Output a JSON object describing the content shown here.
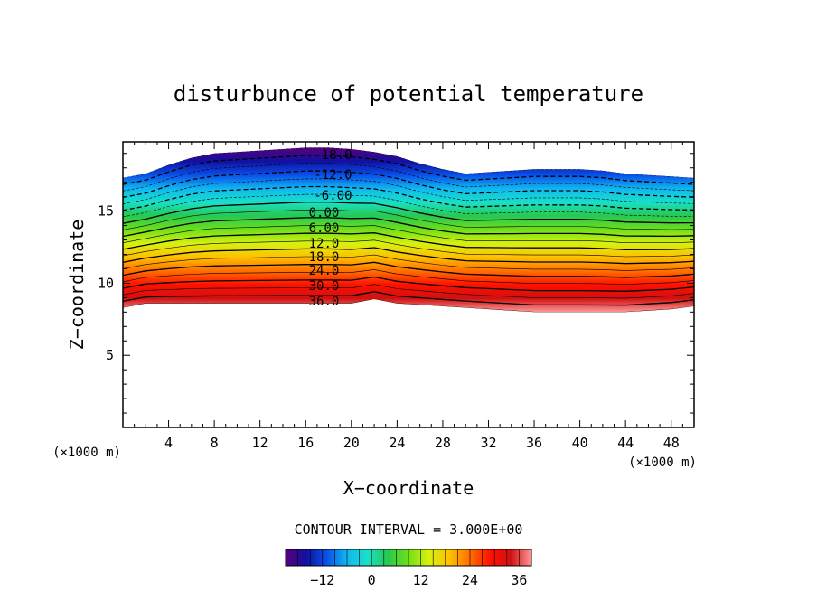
{
  "chart_data": {
    "type": "contour",
    "title": "disturbunce of potential temperature",
    "xlabel": "X−coordinate",
    "ylabel": "Z−coordinate",
    "x_unit_left": "(×1000 m)",
    "x_unit_right": "(×1000 m)",
    "xlim": [
      0,
      50
    ],
    "ylim": [
      0,
      19.8
    ],
    "x_ticks": [
      4,
      8,
      12,
      16,
      20,
      24,
      28,
      32,
      36,
      40,
      44,
      48
    ],
    "y_ticks": [
      5,
      10,
      15
    ],
    "contour_interval_text": "CONTOUR INTERVAL = 3.000E+00",
    "contour_interval": 3.0,
    "value_range": [
      -21,
      39
    ],
    "contour_labels": [
      "-18.0",
      "-12.0",
      "-6.00",
      "0.00",
      "6.00",
      "12.0",
      "18.0",
      "24.0",
      "30.0",
      "36.0"
    ],
    "colorbar": {
      "ticks": [
        -12,
        0,
        12,
        24,
        36
      ],
      "tick_labels": [
        "−12",
        "0",
        "12",
        "24",
        "36"
      ],
      "range": [
        -21,
        39
      ]
    },
    "field_boundaries": {
      "x": [
        0,
        2,
        4,
        6,
        8,
        10,
        12,
        14,
        16,
        18,
        20,
        22,
        24,
        26,
        28,
        30,
        32,
        34,
        36,
        38,
        40,
        42,
        44,
        46,
        48,
        50
      ],
      "top_z": [
        17.3,
        17.6,
        18.2,
        18.7,
        19.0,
        19.1,
        19.2,
        19.3,
        19.4,
        19.4,
        19.3,
        19.1,
        18.8,
        18.3,
        17.9,
        17.6,
        17.7,
        17.8,
        17.9,
        17.9,
        17.9,
        17.8,
        17.6,
        17.5,
        17.4,
        17.3
      ],
      "bottom_z": [
        8.3,
        8.6,
        8.6,
        8.6,
        8.6,
        8.6,
        8.6,
        8.6,
        8.6,
        8.6,
        8.6,
        8.9,
        8.6,
        8.5,
        8.4,
        8.3,
        8.2,
        8.1,
        8.0,
        8.0,
        8.0,
        8.0,
        8.0,
        8.1,
        8.2,
        8.4
      ]
    },
    "colormap": [
      "#5a0078",
      "#1010a0",
      "#0a50e8",
      "#10b8f0",
      "#18e0c8",
      "#28c850",
      "#70e018",
      "#d8f010",
      "#ffc000",
      "#ff7000",
      "#ff1000",
      "#d01010",
      "#ff9898"
    ]
  }
}
